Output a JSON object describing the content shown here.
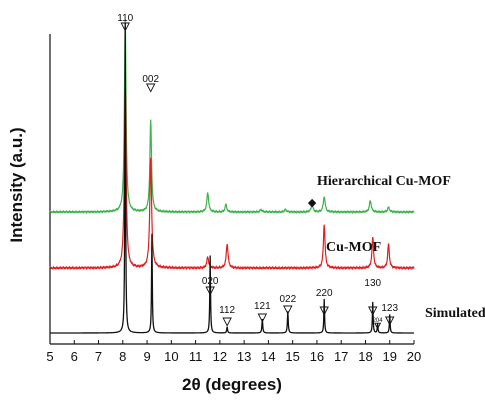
{
  "chart_data": {
    "type": "line",
    "title": "",
    "xlabel": "2θ (degrees)",
    "ylabel": "Intensity (a.u.)",
    "xlim": [
      5,
      20
    ],
    "x_ticks": [
      "5",
      "6",
      "7",
      "8",
      "9",
      "10",
      "11",
      "12",
      "13",
      "14",
      "15",
      "16",
      "17",
      "18",
      "19",
      "20"
    ],
    "y_ticks_shown": false,
    "grid": false,
    "legend": "none (series labelled beside traces)",
    "series": [
      {
        "name": "Hierarchical Cu-MOF",
        "color": "#3cb34a",
        "baseline": 0.0,
        "peaks": [
          {
            "x": 8.1,
            "height": 1.0,
            "width": 0.08
          },
          {
            "x": 9.15,
            "height": 0.48,
            "width": 0.08
          },
          {
            "x": 11.5,
            "height": 0.1,
            "width": 0.09
          },
          {
            "x": 12.25,
            "height": 0.04,
            "width": 0.08
          },
          {
            "x": 13.7,
            "height": 0.012,
            "width": 0.1
          },
          {
            "x": 14.7,
            "height": 0.012,
            "width": 0.1
          },
          {
            "x": 15.8,
            "height": 0.04,
            "width": 0.09
          },
          {
            "x": 16.3,
            "height": 0.08,
            "width": 0.09
          },
          {
            "x": 18.2,
            "height": 0.06,
            "width": 0.09
          },
          {
            "x": 18.95,
            "height": 0.025,
            "width": 0.09
          }
        ]
      },
      {
        "name": "Cu-MOF",
        "color": "#e02020",
        "baseline": 0.0,
        "peaks": [
          {
            "x": 8.1,
            "height": 0.85,
            "width": 0.085
          },
          {
            "x": 9.15,
            "height": 0.5,
            "width": 0.09
          },
          {
            "x": 11.5,
            "height": 0.05,
            "width": 0.09
          },
          {
            "x": 12.3,
            "height": 0.11,
            "width": 0.09
          },
          {
            "x": 16.3,
            "height": 0.2,
            "width": 0.08
          },
          {
            "x": 18.3,
            "height": 0.14,
            "width": 0.08
          },
          {
            "x": 18.95,
            "height": 0.11,
            "width": 0.08
          }
        ]
      },
      {
        "name": "Simulated",
        "color": "#111111",
        "baseline": 0.0,
        "peaks": [
          {
            "x": 8.1,
            "height": 1.0,
            "width": 0.035
          },
          {
            "x": 9.2,
            "height": 0.32,
            "width": 0.035
          },
          {
            "x": 11.6,
            "height": 0.25,
            "width": 0.035
          },
          {
            "x": 12.3,
            "height": 0.02,
            "width": 0.04
          },
          {
            "x": 13.75,
            "height": 0.045,
            "width": 0.04
          },
          {
            "x": 14.8,
            "height": 0.07,
            "width": 0.04
          },
          {
            "x": 16.3,
            "height": 0.11,
            "width": 0.035
          },
          {
            "x": 18.3,
            "height": 0.1,
            "width": 0.035
          },
          {
            "x": 18.5,
            "height": 0.03,
            "width": 0.035
          },
          {
            "x": 19.0,
            "height": 0.06,
            "width": 0.035
          }
        ]
      }
    ],
    "peak_labels": [
      {
        "text": "110",
        "x": 8.1
      },
      {
        "text": "002",
        "x": 9.15
      },
      {
        "text": "020",
        "x": 11.6
      },
      {
        "text": "112",
        "x": 12.3
      },
      {
        "text": "121",
        "x": 13.75
      },
      {
        "text": "022",
        "x": 14.8
      },
      {
        "text": "220",
        "x": 16.3
      },
      {
        "text": "130",
        "x": 18.3
      },
      {
        "text": "204",
        "x": 18.5
      },
      {
        "text": "123",
        "x": 19.0
      }
    ],
    "marker_special": {
      "symbol": "◆",
      "x": 15.8,
      "series": "Hierarchical Cu-MOF"
    }
  }
}
